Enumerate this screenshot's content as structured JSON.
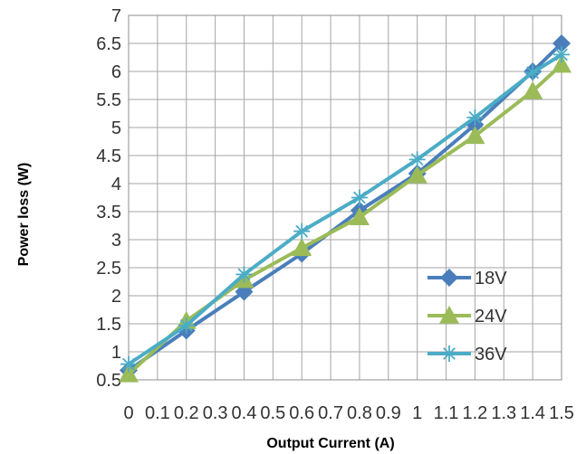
{
  "chart_data": {
    "type": "line",
    "title": "",
    "xlabel": "Output Current (A)",
    "ylabel": "Power loss (W)",
    "x_ticks": [
      "0",
      "0.1",
      "0.2",
      "0.3",
      "0.4",
      "0.5",
      "0.6",
      "0.7",
      "0.8",
      "0.9",
      "1",
      "1.1",
      "1.2",
      "1.3",
      "1.4",
      "1.5"
    ],
    "xlim": [
      0,
      1.5
    ],
    "ylim": [
      0.5,
      7
    ],
    "y_ticks": [
      "0.5",
      "1",
      "1.5",
      "2",
      "2.5",
      "3",
      "3.5",
      "4",
      "4.5",
      "5",
      "5.5",
      "6",
      "6.5",
      "7"
    ],
    "grid": true,
    "legend_position": "bottom-right",
    "x": [
      0,
      0.2,
      0.4,
      0.6,
      0.8,
      1.0,
      1.2,
      1.4,
      1.5
    ],
    "series": [
      {
        "name": "18V",
        "color": "#4a7ebb",
        "marker": "diamond",
        "values": [
          0.67,
          1.38,
          2.07,
          2.75,
          3.52,
          4.18,
          5.05,
          6.0,
          6.5
        ]
      },
      {
        "name": "24V",
        "color": "#9bbb59",
        "marker": "triangle",
        "values": [
          0.6,
          1.55,
          2.28,
          2.85,
          3.4,
          4.15,
          4.85,
          5.65,
          6.12
        ]
      },
      {
        "name": "36V",
        "color": "#4bacc6",
        "marker": "star",
        "values": [
          0.78,
          1.47,
          2.38,
          3.15,
          3.75,
          4.43,
          5.18,
          5.98,
          6.3
        ]
      }
    ]
  }
}
